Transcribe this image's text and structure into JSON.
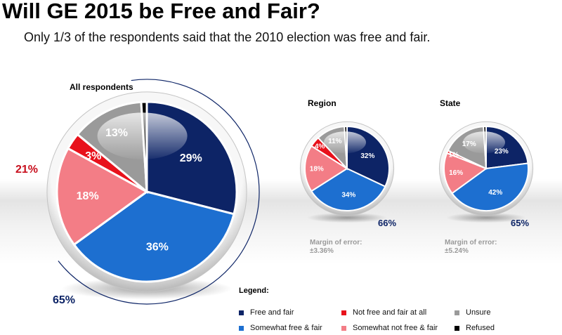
{
  "title": "Will GE 2015 be Free and Fair?",
  "subtitle": "Only 1/3 of the respondents said that the 2010 election was free and fair.",
  "colors": {
    "free_and_fair": "#0d2466",
    "somewhat_free_fair": "#1d6fd0",
    "not_free_fair_at_all": "#e8111b",
    "somewhat_not_free_fair": "#f37d86",
    "unsure": "#9a9a9a",
    "refused": "#000000"
  },
  "legend": {
    "title": "Legend:",
    "items": [
      {
        "label": "Free and fair",
        "color": "#0d2466"
      },
      {
        "label": "Somewhat free & fair",
        "color": "#1d6fd0"
      },
      {
        "label": "Not free and fair at all",
        "color": "#e8111b"
      },
      {
        "label": "Somewhat not free & fair",
        "color": "#f37d86"
      },
      {
        "label": "Unsure",
        "color": "#9a9a9a"
      },
      {
        "label": "Refused",
        "color": "#000000"
      }
    ]
  },
  "margins": {
    "region": {
      "label": "Margin of error:",
      "value": "±3.36%"
    },
    "state": {
      "label": "Margin of error:",
      "value": "±5.24%"
    }
  },
  "chart_data": [
    {
      "type": "pie",
      "title": "All respondents",
      "slices": [
        {
          "name": "Free and fair",
          "value": 29,
          "label": "29%"
        },
        {
          "name": "Somewhat free & fair",
          "value": 36,
          "label": "36%"
        },
        {
          "name": "Somewhat not free & fair",
          "value": 18,
          "label": "18%"
        },
        {
          "name": "Not free and fair at all",
          "value": 3,
          "label": "3%"
        },
        {
          "name": "Unsure",
          "value": 13,
          "label": "13%"
        },
        {
          "name": "Refused",
          "value": 1,
          "label": ""
        }
      ],
      "group_totals": [
        {
          "label": "65%",
          "color": "#0d2466"
        },
        {
          "label": "21%",
          "color": "#c8101e"
        }
      ]
    },
    {
      "type": "pie",
      "title": "Region",
      "slices": [
        {
          "name": "Free and fair",
          "value": 32,
          "label": "32%"
        },
        {
          "name": "Somewhat free & fair",
          "value": 34,
          "label": "34%"
        },
        {
          "name": "Somewhat not free & fair",
          "value": 18,
          "label": "18%"
        },
        {
          "name": "Not free and fair at all",
          "value": 4,
          "label": "4%"
        },
        {
          "name": "Unsure",
          "value": 11,
          "label": "11%"
        },
        {
          "name": "Refused",
          "value": 1,
          "label": ""
        }
      ],
      "group_totals": [
        {
          "label": "66%",
          "color": "#0d2466"
        }
      ]
    },
    {
      "type": "pie",
      "title": "State",
      "slices": [
        {
          "name": "Free and fair",
          "value": 23,
          "label": "23%"
        },
        {
          "name": "Somewhat free & fair",
          "value": 42,
          "label": "42%"
        },
        {
          "name": "Somewhat not free & fair",
          "value": 16,
          "label": "16%"
        },
        {
          "name": "Not free and fair at all",
          "value": 1,
          "label": "1%"
        },
        {
          "name": "Unsure",
          "value": 17,
          "label": "17%"
        },
        {
          "name": "Refused",
          "value": 1,
          "label": ""
        }
      ],
      "group_totals": [
        {
          "label": "65%",
          "color": "#0d2466"
        }
      ]
    }
  ]
}
